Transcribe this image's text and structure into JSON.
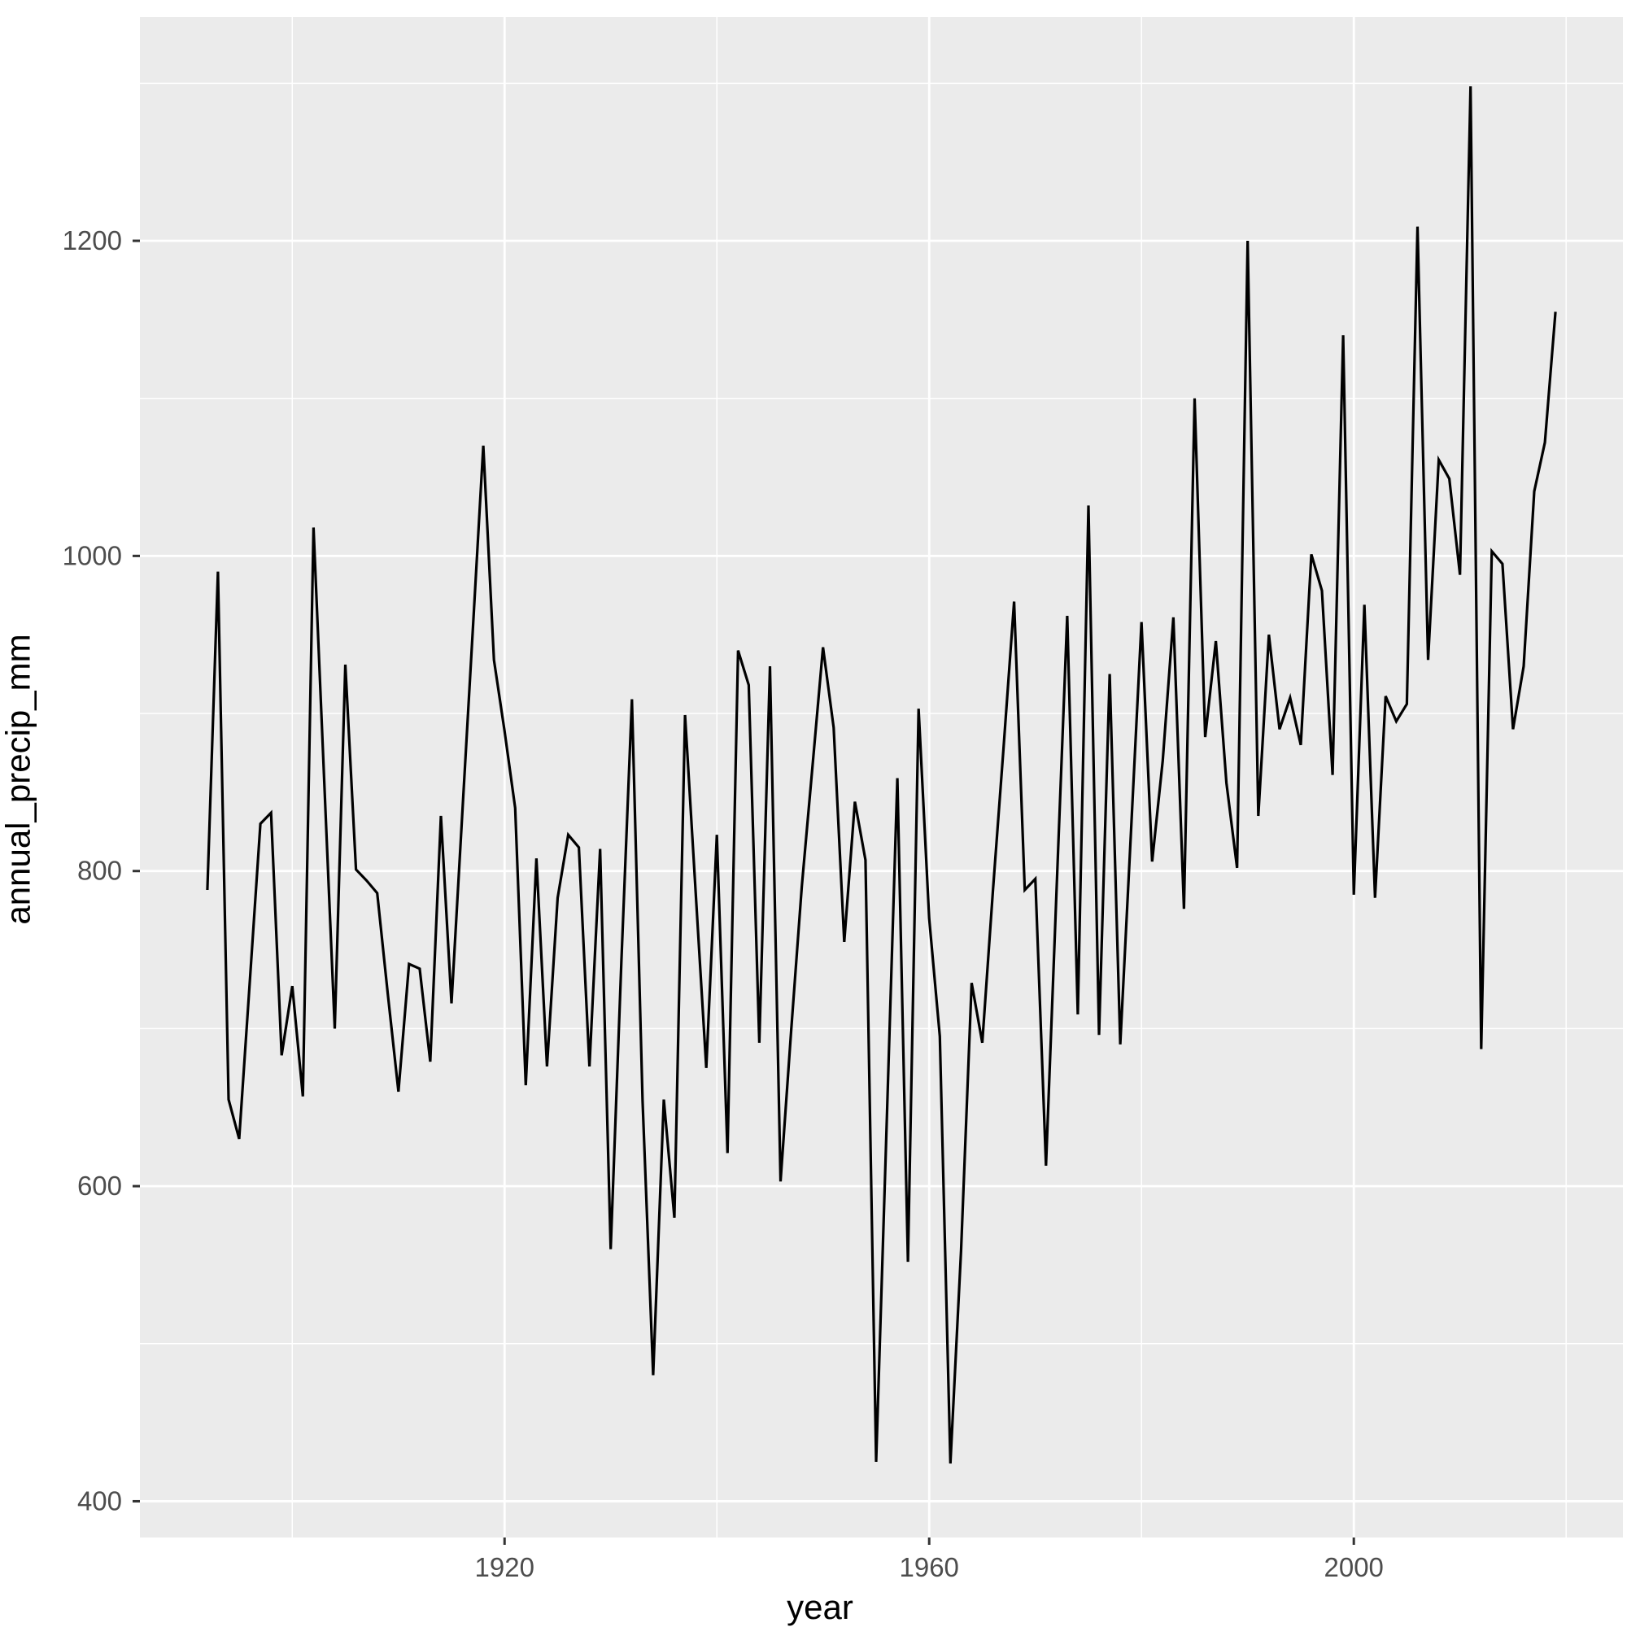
{
  "chart_data": {
    "type": "line",
    "title": "",
    "xlabel": "year",
    "ylabel": "annual_precip_mm",
    "legend": "none",
    "grid": true,
    "xlim": [
      1885.65,
      2025.35
    ],
    "ylim": [
      377,
      1342
    ],
    "x_ticks_major": [
      1920,
      1960,
      2000
    ],
    "x_ticks_minor": [
      1900,
      1940,
      1980,
      2020
    ],
    "y_ticks_major": [
      400,
      600,
      800,
      1000,
      1200
    ],
    "y_ticks_minor": [
      500,
      700,
      900,
      1100,
      1300
    ],
    "x": [
      1892,
      1893,
      1894,
      1895,
      1896,
      1897,
      1898,
      1899,
      1900,
      1901,
      1902,
      1903,
      1904,
      1905,
      1906,
      1907,
      1908,
      1909,
      1910,
      1911,
      1912,
      1913,
      1914,
      1915,
      1916,
      1917,
      1918,
      1919,
      1920,
      1921,
      1922,
      1923,
      1924,
      1925,
      1926,
      1927,
      1928,
      1929,
      1930,
      1931,
      1932,
      1933,
      1934,
      1935,
      1936,
      1937,
      1938,
      1939,
      1940,
      1941,
      1942,
      1943,
      1944,
      1945,
      1946,
      1947,
      1948,
      1949,
      1950,
      1951,
      1952,
      1953,
      1954,
      1955,
      1956,
      1957,
      1958,
      1959,
      1960,
      1961,
      1962,
      1963,
      1964,
      1965,
      1966,
      1967,
      1968,
      1969,
      1970,
      1971,
      1972,
      1973,
      1974,
      1975,
      1976,
      1977,
      1978,
      1979,
      1980,
      1981,
      1982,
      1983,
      1984,
      1985,
      1986,
      1987,
      1988,
      1989,
      1990,
      1991,
      1992,
      1993,
      1994,
      1995,
      1996,
      1997,
      1998,
      1999,
      2000,
      2001,
      2002,
      2003,
      2004,
      2005,
      2006,
      2007,
      2008,
      2009,
      2010,
      2011,
      2012,
      2013,
      2014,
      2015,
      2016,
      2017,
      2018,
      2019
    ],
    "series": [
      {
        "name": "annual_precip_mm",
        "values": [
          788,
          990,
          655,
          630,
          730,
          830,
          837,
          683,
          727,
          657,
          1018,
          859,
          700,
          931,
          801,
          794,
          786,
          722,
          660,
          741,
          738,
          679,
          835,
          716,
          834,
          952,
          1070,
          934,
          889,
          840,
          664,
          808,
          676,
          783,
          823,
          815,
          676,
          814,
          560,
          742,
          909,
          654,
          480,
          655,
          580,
          899,
          787,
          675,
          823,
          621,
          940,
          918,
          691,
          930,
          603,
          699,
          790,
          866,
          942,
          891,
          755,
          844,
          807,
          425,
          640,
          859,
          552,
          903,
          770,
          695,
          424,
          559,
          729,
          691,
          787,
          878,
          971,
          788,
          795,
          613,
          788,
          962,
          709,
          1032,
          696,
          925,
          690,
          824,
          958,
          806,
          870,
          961,
          776,
          1100,
          885,
          946,
          856,
          802,
          1200,
          835,
          950,
          890,
          910,
          880,
          1001,
          978,
          861,
          1140,
          785,
          969,
          783,
          911,
          895,
          906,
          1209,
          934,
          1061,
          1049,
          988,
          1298,
          687,
          1003,
          995,
          890,
          930,
          1041,
          1072,
          1155
        ]
      }
    ],
    "colors": {
      "line": "#000000",
      "panel_bg": "#ebebeb",
      "grid": "#ffffff",
      "tick_label": "#4d4d4d",
      "tick_mark": "#333333",
      "axis_title": "#000000"
    }
  }
}
